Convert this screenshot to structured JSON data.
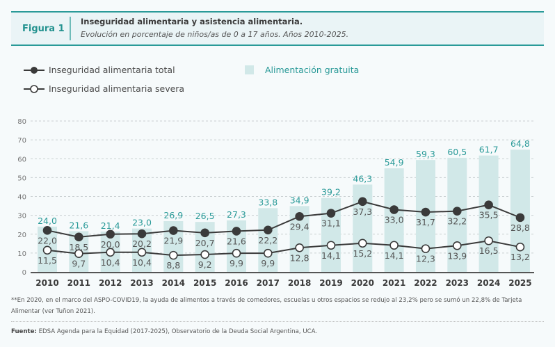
{
  "header": {
    "figure_label": "Figura 1",
    "title": "Inseguridad alimentaria y asistencia alimentaria.",
    "subtitle": "Evolución en porcentaje de niños/as de 0 a 17 años. Años 2010-2025."
  },
  "colors": {
    "accent": "#2a9a98",
    "bar": "#d1e8e8",
    "line": "#3a3a3a",
    "marker_filled": "#3a3a3a",
    "marker_open": "#ffffff"
  },
  "footnote": "**En 2020, en el marco del ASPO-COVID19, la ayuda de alimentos a través de comedores, escuelas u otros espacios se redujo al 23,2% pero se sumó un 22,8% de Tarjeta Alimentar (ver Tuñon 2021).",
  "source": {
    "label": "Fuente:",
    "text": " EDSA Agenda para la Equidad (2017-2025), Observatorio de la Deuda Social Argentina, UCA."
  },
  "chart_data": {
    "type": "bar",
    "title": "Inseguridad alimentaria y asistencia alimentaria.",
    "subtitle": "Evolución en porcentaje de niños/as de 0 a 17 años. Años 2010-2025.",
    "xlabel": "",
    "ylabel": "",
    "ylim": [
      0,
      80
    ],
    "yticks": [
      0,
      10,
      20,
      30,
      40,
      50,
      60,
      70,
      80
    ],
    "grid": true,
    "legend_position": "top-left",
    "categories": [
      "2010",
      "2011",
      "2012",
      "2013",
      "2014",
      "2015",
      "2016",
      "2017",
      "2018",
      "2019",
      "2020",
      "2021",
      "2022",
      "2023",
      "2024",
      "2025"
    ],
    "series": [
      {
        "name": "Alimentación gratuita",
        "type": "bar",
        "values": [
          24.0,
          21.6,
          21.4,
          23.0,
          26.9,
          26.5,
          27.3,
          33.8,
          34.9,
          39.2,
          46.3,
          54.9,
          59.3,
          60.5,
          61.7,
          64.8
        ],
        "labels": [
          "24,0",
          "21,6",
          "21,4",
          "23,0",
          "26,9",
          "26,5",
          "27,3",
          "33,8",
          "34,9",
          "39,2",
          "46,3",
          "54,9",
          "59,3",
          "60,5",
          "61,7",
          "64,8"
        ]
      },
      {
        "name": "Inseguridad alimentaria total",
        "type": "line",
        "marker": "filled-circle",
        "values": [
          22.0,
          18.5,
          20.0,
          20.2,
          21.9,
          20.7,
          21.6,
          22.2,
          29.4,
          31.1,
          37.3,
          33.0,
          31.7,
          32.2,
          35.5,
          28.8
        ],
        "labels": [
          "22,0",
          "18,5",
          "20,0",
          "20,2",
          "21,9",
          "20,7",
          "21,6",
          "22,2",
          "29,4",
          "31,1",
          "37,3",
          "33,0",
          "31,7",
          "32,2",
          "35,5",
          "28,8"
        ]
      },
      {
        "name": "Inseguridad alimentaria severa",
        "type": "line",
        "marker": "open-circle",
        "values": [
          11.5,
          9.7,
          10.4,
          10.4,
          8.8,
          9.2,
          9.9,
          9.9,
          12.8,
          14.1,
          15.2,
          14.1,
          12.3,
          13.9,
          16.5,
          13.2
        ],
        "labels": [
          "11,5",
          "9,7",
          "10,4",
          "10,4",
          "8,8",
          "9,2",
          "9,9",
          "9,9",
          "12,8",
          "14,1",
          "15,2",
          "14,1",
          "12,3",
          "13,9",
          "16,5",
          "13,2"
        ]
      }
    ]
  }
}
